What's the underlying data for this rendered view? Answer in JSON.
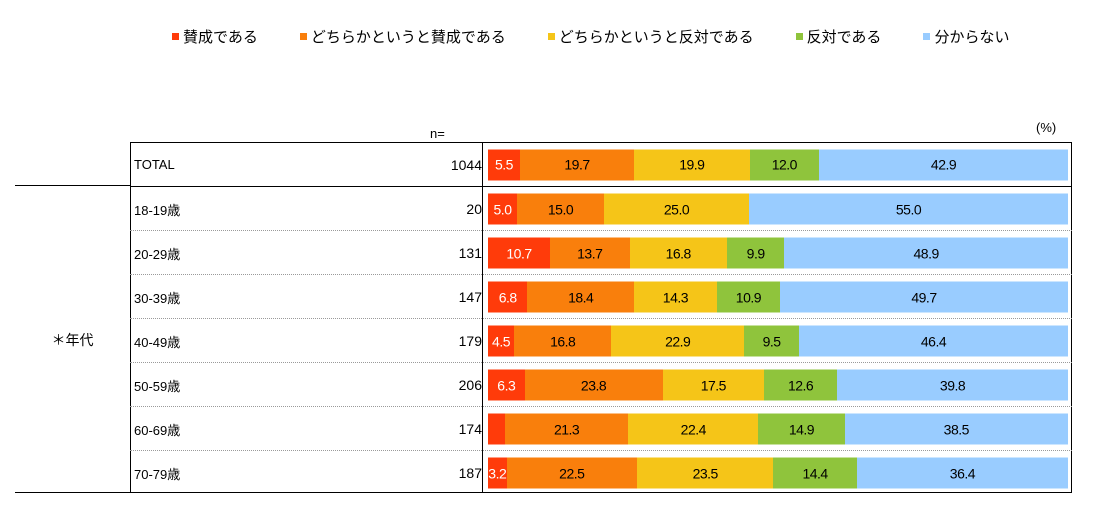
{
  "chart_data": {
    "type": "bar",
    "orientation": "horizontal",
    "stacked": true,
    "percent_stacked": true,
    "legend_position": "top",
    "n_header": "n=",
    "unit_label": "(%)",
    "series": [
      {
        "name": "賛成である",
        "color": "#ff3b0a"
      },
      {
        "name": "どちらかというと賛成である",
        "color": "#f97f0c"
      },
      {
        "name": "どちらかというと反対である",
        "color": "#f5c518"
      },
      {
        "name": "反対である",
        "color": "#8fc43c"
      },
      {
        "name": "分からない",
        "color": "#99ccff"
      }
    ],
    "total_row": {
      "label": "TOTAL",
      "n": "1044",
      "values": [
        5.5,
        19.7,
        19.9,
        12.0,
        42.9
      ],
      "labels": [
        "5.5",
        "19.7",
        "19.9",
        "12.0",
        "42.9"
      ]
    },
    "group_label": "＊年代",
    "rows": [
      {
        "label": "18-19歳",
        "n": "20",
        "values": [
          5.0,
          15.0,
          25.0,
          0.0,
          55.0
        ],
        "labels": [
          "5.0",
          "15.0",
          "25.0",
          "",
          "55.0"
        ]
      },
      {
        "label": "20-29歳",
        "n": "131",
        "values": [
          10.7,
          13.7,
          16.8,
          9.9,
          48.9
        ],
        "labels": [
          "10.7",
          "13.7",
          "16.8",
          "9.9",
          "48.9"
        ]
      },
      {
        "label": "30-39歳",
        "n": "147",
        "values": [
          6.8,
          18.4,
          14.3,
          10.9,
          49.7
        ],
        "labels": [
          "6.8",
          "18.4",
          "14.3",
          "10.9",
          "49.7"
        ]
      },
      {
        "label": "40-49歳",
        "n": "179",
        "values": [
          4.5,
          16.8,
          22.9,
          9.5,
          46.4
        ],
        "labels": [
          "4.5",
          "16.8",
          "22.9",
          "9.5",
          "46.4"
        ]
      },
      {
        "label": "50-59歳",
        "n": "206",
        "values": [
          6.3,
          23.8,
          17.5,
          12.6,
          39.8
        ],
        "labels": [
          "6.3",
          "23.8",
          "17.5",
          "12.6",
          "39.8"
        ]
      },
      {
        "label": "60-69歳",
        "n": "174",
        "values": [
          2.9,
          21.3,
          22.4,
          14.9,
          38.5
        ],
        "labels": [
          "",
          "21.3",
          "22.4",
          "14.9",
          "38.5"
        ]
      },
      {
        "label": "70-79歳",
        "n": "187",
        "values": [
          3.2,
          22.5,
          23.5,
          14.4,
          36.4
        ],
        "labels": [
          "3.2",
          "22.5",
          "23.5",
          "14.4",
          "36.4"
        ]
      }
    ]
  }
}
